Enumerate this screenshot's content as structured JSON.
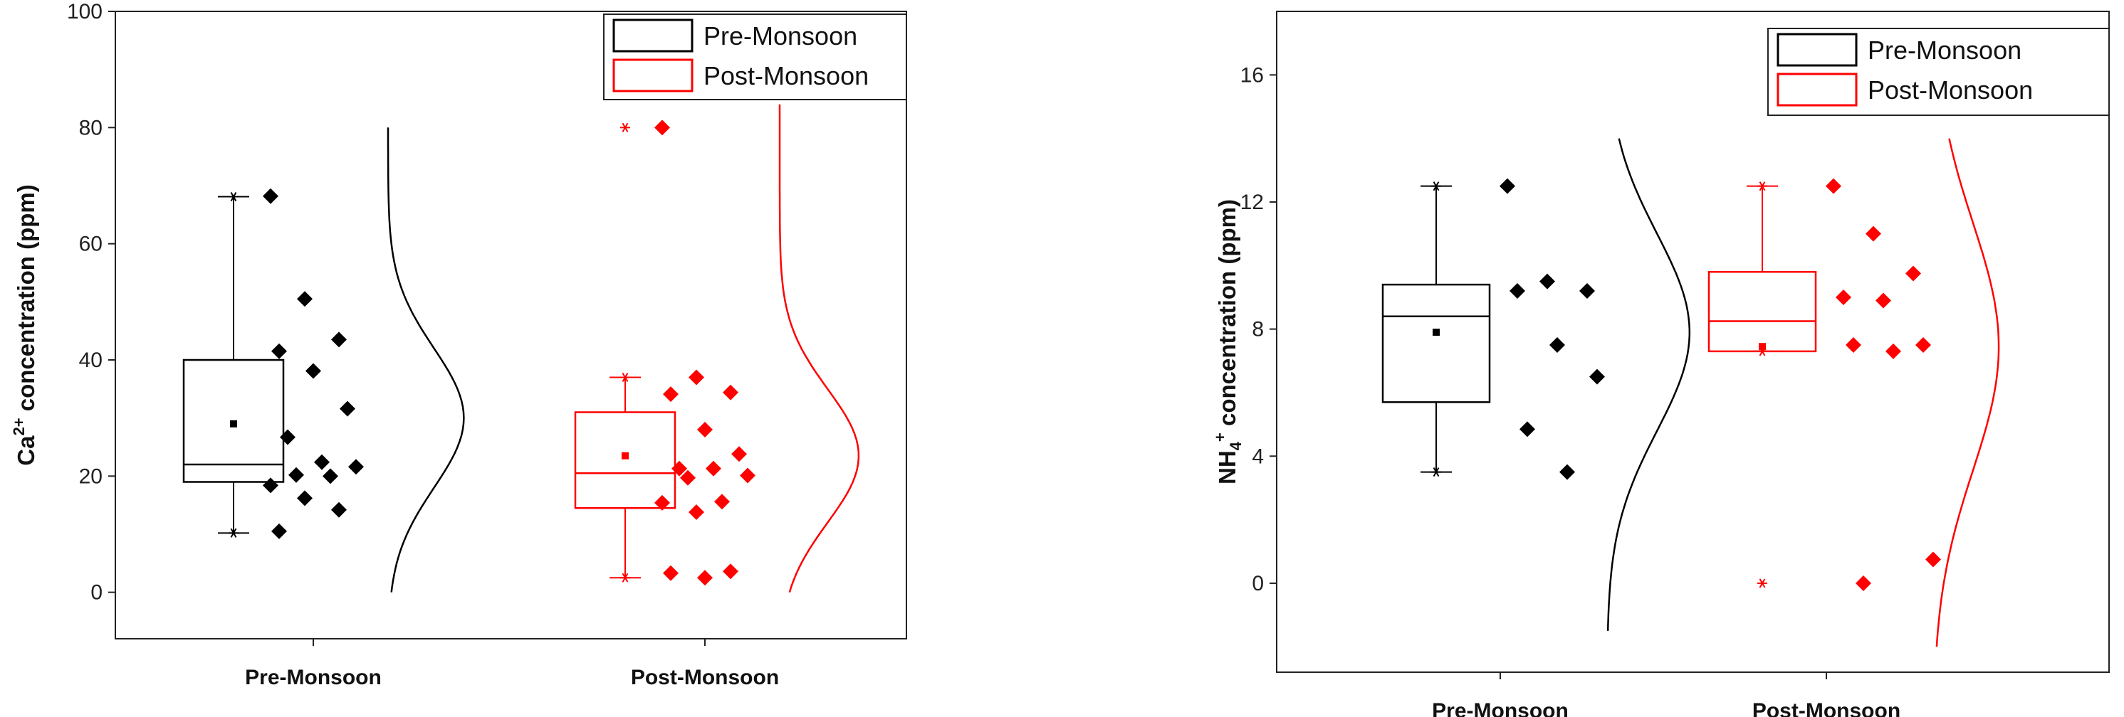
{
  "colors": {
    "pre": "#000000",
    "post": "#ff0000",
    "axis": "#222222"
  },
  "chart_data": [
    {
      "type": "box",
      "ylabel": {
        "base": "Ca",
        "sup": "2+",
        "rest": " concentration (ppm)"
      },
      "ylim": [
        -8,
        100
      ],
      "yticks": [
        0,
        20,
        40,
        60,
        80,
        100
      ],
      "categories": [
        "Pre-Monsoon",
        "Post-Monsoon"
      ],
      "legend": {
        "position": "top-right",
        "entries": [
          "Pre-Monsoon",
          "Post-Monsoon"
        ]
      },
      "series": [
        {
          "name": "Pre-Monsoon",
          "color": "#000000",
          "box": {
            "q1": 19,
            "median": 22,
            "q3": 40,
            "mean": 29,
            "whisker_low": 10.2,
            "whisker_high": 68.1
          },
          "outliers": [],
          "points": [
            68.2,
            50.5,
            43.5,
            41.5,
            38.1,
            31.6,
            26.7,
            22.4,
            21.6,
            20.2,
            20.0,
            18.4,
            16.2,
            14.2,
            10.5
          ],
          "dist_mean": 30,
          "dist_sd": 12,
          "dist_range": [
            0,
            80
          ]
        },
        {
          "name": "Post-Monsoon",
          "color": "#ff0000",
          "box": {
            "q1": 14.5,
            "median": 20.5,
            "q3": 31,
            "mean": 23.5,
            "whisker_low": 2.5,
            "whisker_high": 37
          },
          "outliers": [
            80
          ],
          "points": [
            80,
            37,
            34.4,
            34.1,
            28,
            23.8,
            21.3,
            21.3,
            20.1,
            19.7,
            15.6,
            15.4,
            13.8,
            3.6,
            3.3,
            2.5
          ],
          "dist_mean": 23.5,
          "dist_sd": 11.5,
          "dist_range": [
            0,
            84
          ]
        }
      ]
    },
    {
      "type": "box",
      "ylabel": {
        "base": "NH",
        "sub": "4",
        "sup": "+",
        "rest": " concentration (ppm)"
      },
      "ylim": [
        -2.8,
        18
      ],
      "yticks": [
        0,
        4,
        8,
        12,
        16
      ],
      "categories": [
        "Pre-Monsoon",
        "Post-Monsoon"
      ],
      "legend": {
        "position": "top-right",
        "entries": [
          "Pre-Monsoon",
          "Post-Monsoon"
        ]
      },
      "series": [
        {
          "name": "Pre-Monsoon",
          "color": "#000000",
          "box": {
            "q1": 5.7,
            "median": 8.4,
            "q3": 9.4,
            "mean": 7.9,
            "whisker_low": 3.5,
            "whisker_high": 12.5
          },
          "outliers": [],
          "points": [
            12.5,
            9.5,
            9.2,
            9.2,
            7.5,
            6.5,
            4.85,
            3.5
          ],
          "dist_mean": 7.9,
          "dist_sd": 3.1,
          "dist_range": [
            -1.5,
            14
          ]
        },
        {
          "name": "Post-Monsoon",
          "color": "#ff0000",
          "box": {
            "q1": 7.3,
            "median": 8.25,
            "q3": 9.8,
            "mean": 7.45,
            "whisker_low": 7.3,
            "whisker_high": 12.5
          },
          "outliers": [
            0
          ],
          "points": [
            12.5,
            11.0,
            9.75,
            9.0,
            8.9,
            7.5,
            7.5,
            7.3,
            0.75,
            0.0
          ],
          "dist_mean": 7.45,
          "dist_sd": 3.9,
          "dist_range": [
            -2,
            14
          ]
        }
      ]
    }
  ]
}
